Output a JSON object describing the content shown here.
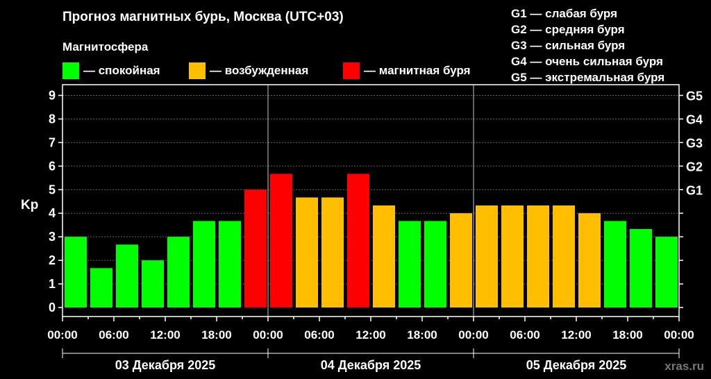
{
  "title": "Прогноз магнитных бурь, Москва (UTC+03)",
  "magnetosphere_label": "Магнитосфера",
  "legend": [
    {
      "label": "— спокойная",
      "color": "#00ff00"
    },
    {
      "label": "— возбужденная",
      "color": "#ffbf00"
    },
    {
      "label": "— магнитная буря",
      "color": "#ff0000"
    }
  ],
  "storm_legend": [
    "G1 — слабая буря",
    "G2 — средняя буря",
    "G3 — сильная буря",
    "G4 — очень сильная буря",
    "G5 — экстремальная буря"
  ],
  "watermark": "xras.ru",
  "chart_data": {
    "type": "bar",
    "ylabel": "Kp",
    "ylim": [
      0,
      9
    ],
    "yticks": [
      "0",
      "1",
      "2",
      "3",
      "4",
      "5",
      "6",
      "7",
      "8",
      "9"
    ],
    "right_ticks": [
      {
        "label": "G1",
        "value": 5
      },
      {
        "label": "G2",
        "value": 6
      },
      {
        "label": "G3",
        "value": 7
      },
      {
        "label": "G4",
        "value": 8
      },
      {
        "label": "G5",
        "value": 9
      }
    ],
    "xtick_labels": [
      "00:00",
      "06:00",
      "12:00",
      "18:00",
      "00:00",
      "06:00",
      "12:00",
      "18:00",
      "00:00",
      "06:00",
      "12:00",
      "18:00",
      "00:00"
    ],
    "days": [
      "03 Декабря 2025",
      "04 Декабря 2025",
      "05 Декабря 2025"
    ],
    "grid": true,
    "values": [
      3.0,
      1.67,
      2.67,
      2.0,
      3.0,
      3.67,
      3.67,
      5.0,
      5.67,
      4.67,
      4.67,
      5.67,
      4.33,
      3.67,
      3.67,
      4.0,
      4.33,
      4.33,
      4.33,
      4.33,
      4.0,
      3.67,
      3.33,
      3.0
    ],
    "levels": [
      "quiet",
      "quiet",
      "quiet",
      "quiet",
      "quiet",
      "quiet",
      "quiet",
      "storm",
      "storm",
      "active",
      "active",
      "storm",
      "active",
      "quiet",
      "quiet",
      "active",
      "active",
      "active",
      "active",
      "active",
      "active",
      "quiet",
      "quiet",
      "quiet"
    ],
    "level_colors": {
      "quiet": "#00ff00",
      "active": "#ffbf00",
      "storm": "#ff0000"
    }
  }
}
